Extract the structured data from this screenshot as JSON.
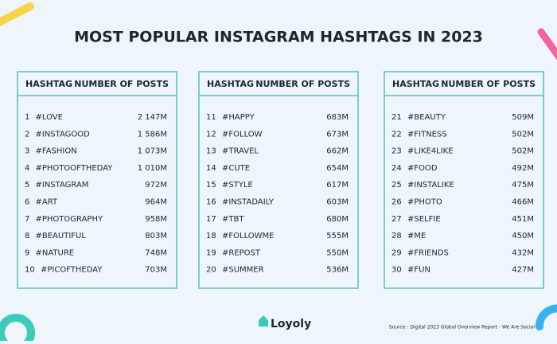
{
  "title": "MOST POPULAR INSTAGRAM HASHTAGS IN 2023",
  "tables": [
    {
      "headers": [
        "HASHTAG",
        "NUMBER OF POSTS"
      ],
      "rows": [
        [
          "1",
          "#LOVE",
          "2 147M"
        ],
        [
          "2",
          "#INSTAGOOD",
          "1 586M"
        ],
        [
          "3",
          "#FASHION",
          "1 073M"
        ],
        [
          "4",
          "#PHOTOOFTHEDAY",
          "1 010M"
        ],
        [
          "5",
          "#INSTAGRAM",
          "972M"
        ],
        [
          "6",
          "#ART",
          "964M"
        ],
        [
          "7",
          "#PHOTOGRAPHY",
          "958M"
        ],
        [
          "8",
          "#BEAUTIFUL",
          "803M"
        ],
        [
          "9",
          "#NATURE",
          "748M"
        ],
        [
          "10",
          "#PICOFTHEDAY",
          "703M"
        ]
      ]
    },
    {
      "headers": [
        "HASHTAG",
        "NUMBER OF POSTS"
      ],
      "rows": [
        [
          "11",
          "#HAPPY",
          "683M"
        ],
        [
          "12",
          "#FOLLOW",
          "673M"
        ],
        [
          "13",
          "#TRAVEL",
          "662M"
        ],
        [
          "14",
          "#CUTE",
          "654M"
        ],
        [
          "15",
          "#STYLE",
          "617M"
        ],
        [
          "16",
          "#INSTADAILY",
          "603M"
        ],
        [
          "17",
          "#TBT",
          "680M"
        ],
        [
          "18",
          "#FOLLOWME",
          "555M"
        ],
        [
          "19",
          "#REPOST",
          "550M"
        ],
        [
          "20",
          "#SUMMER",
          "536M"
        ]
      ]
    },
    {
      "headers": [
        "HASHTAG",
        "NUMBER OF POSTS"
      ],
      "rows": [
        [
          "21",
          "#BEAUTY",
          "509M"
        ],
        [
          "22",
          "#FITNESS",
          "502M"
        ],
        [
          "23",
          "#LIKE4LIKE",
          "502M"
        ],
        [
          "24",
          "#FOOD",
          "492M"
        ],
        [
          "25",
          "#INSTALIKE",
          "475M"
        ],
        [
          "26",
          "#PHOTO",
          "466M"
        ],
        [
          "27",
          "#SELFIE",
          "451M"
        ],
        [
          "28",
          "#ME",
          "450M"
        ],
        [
          "29",
          "#FRIENDS",
          "432M"
        ],
        [
          "30",
          "#FUN",
          "427M"
        ]
      ]
    }
  ],
  "logo": "Loyoly",
  "source": "Source : Digital 2023 Global Overview Report - We Are Social"
}
